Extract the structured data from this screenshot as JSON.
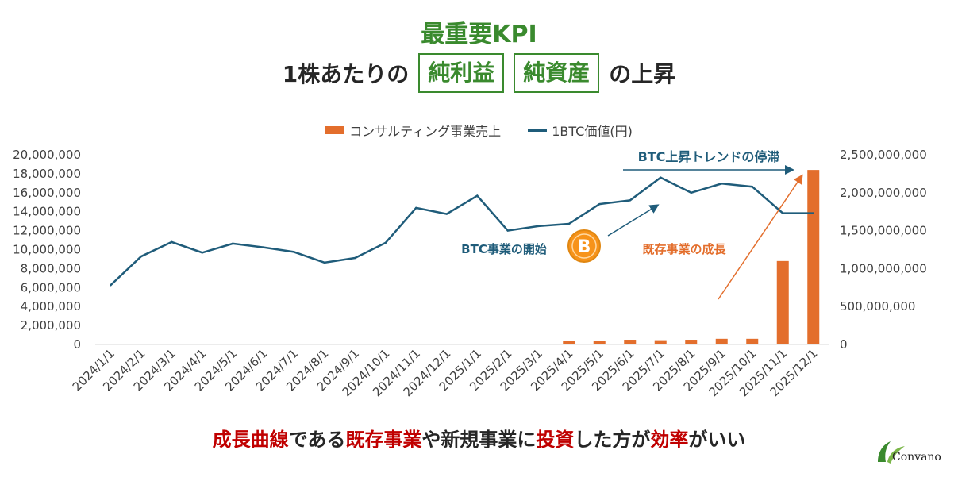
{
  "header": {
    "title": "最重要KPI",
    "sub_prefix": "1株あたりの",
    "box1": "純利益",
    "box2": "純資産",
    "sub_suffix": "の上昇"
  },
  "legend": {
    "bar_label": "コンサルティング事業売上",
    "line_label": "1BTC価値(円)"
  },
  "annotations": {
    "btc_trend": "BTC上昇トレンドの停滞",
    "btc_start": "BTC事業の開始",
    "existing_growth": "既存事業の成長",
    "btc_icon": "bitcoin-icon"
  },
  "bottom_message": {
    "p1": "成長曲線",
    "p2": "である",
    "p3": "既存事業",
    "p4": "や新規事業に",
    "p5": "投資",
    "p6": "した方が",
    "p7": "効率",
    "p8": "がいい"
  },
  "brand": {
    "name": "Convano"
  },
  "colors": {
    "bar": "#e36e2c",
    "line": "#1f5c7a",
    "accent_green": "#3a8a2e",
    "emphasis_red": "#c00000"
  },
  "chart_data": {
    "type": "bar+line",
    "categories": [
      "2024/1/1",
      "2024/2/1",
      "2024/3/1",
      "2024/4/1",
      "2024/5/1",
      "2024/6/1",
      "2024/7/1",
      "2024/8/1",
      "2024/9/1",
      "2024/10/1",
      "2024/11/1",
      "2024/12/1",
      "2025/1/1",
      "2025/2/1",
      "2025/3/1",
      "2025/4/1",
      "2025/5/1",
      "2025/6/1",
      "2025/7/1",
      "2025/8/1",
      "2025/9/1",
      "2025/10/1",
      "2025/11/1",
      "2025/12/1"
    ],
    "series": [
      {
        "type": "bar",
        "axis": "left",
        "values": [
          0,
          0,
          0,
          0,
          0,
          0,
          0,
          0,
          0,
          0,
          0,
          0,
          0,
          0,
          0,
          350000,
          350000,
          500000,
          450000,
          500000,
          600000,
          600000,
          8800000,
          18400000
        ]
      },
      {
        "type": "line",
        "axis": "right",
        "values": [
          780000000,
          1160000000,
          1350000000,
          1210000000,
          1330000000,
          1280000000,
          1220000000,
          1080000000,
          1140000000,
          1340000000,
          1800000000,
          1720000000,
          1960000000,
          1500000000,
          1560000000,
          1590000000,
          1850000000,
          1900000000,
          2200000000,
          2000000000,
          2120000000,
          2080000000,
          1730000000,
          1730000000
        ]
      }
    ],
    "y_left_ticks": [
      "0",
      "2,000,000",
      "4,000,000",
      "6,000,000",
      "8,000,000",
      "10,000,000",
      "12,000,000",
      "14,000,000",
      "16,000,000",
      "18,000,000",
      "20,000,000"
    ],
    "y_right_ticks": [
      "0",
      "500,000,000",
      "1,000,000,000",
      "1,500,000,000",
      "2,000,000,000",
      "2,500,000,000"
    ],
    "ylim_left": [
      0,
      20000000
    ],
    "ylim_right": [
      0,
      2500000000
    ],
    "legend_position": "top",
    "grid": false
  }
}
